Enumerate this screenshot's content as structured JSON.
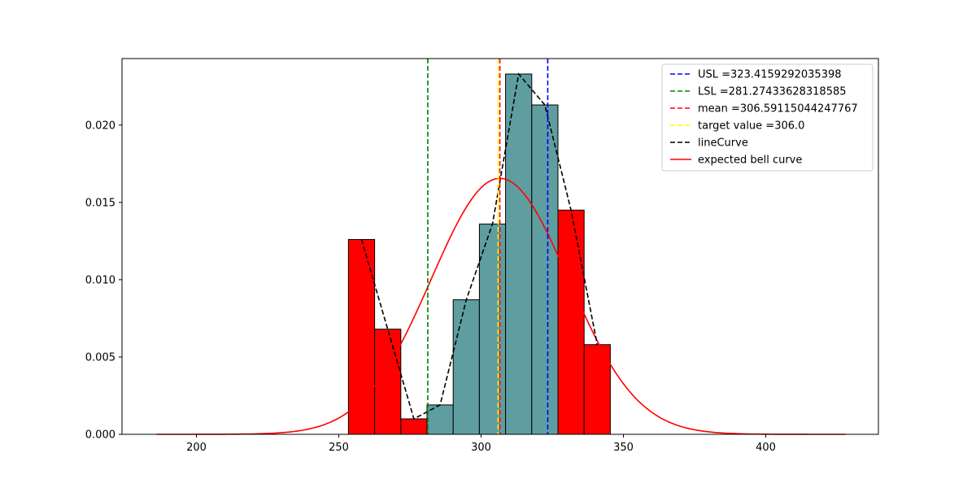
{
  "chart_data": {
    "type": "bar",
    "title": "",
    "xlabel": "",
    "ylabel": "",
    "xlim": [
      175,
      1080
    ],
    "ylim": [
      0,
      0.0243
    ],
    "x_ticks": [
      200,
      250,
      300,
      350,
      400
    ],
    "y_ticks": [
      0.0,
      0.005,
      0.01,
      0.015,
      0.02
    ],
    "x_tick_labels": [
      "200",
      "250",
      "300",
      "350",
      "400"
    ],
    "y_tick_labels": [
      "0.000",
      "0.005",
      "0.010",
      "0.015",
      "0.020"
    ],
    "grid": false,
    "legend_position": "top-right",
    "histogram": {
      "bins": [
        {
          "x0": 253.4,
          "x1": 262.6,
          "density": 0.0126,
          "color": "#ff0000"
        },
        {
          "x0": 262.6,
          "x1": 271.8,
          "density": 0.0068,
          "color": "#ff0000"
        },
        {
          "x0": 271.8,
          "x1": 281.0,
          "density": 0.001,
          "color": "#ff0000"
        },
        {
          "x0": 281.0,
          "x1": 290.2,
          "density": 0.0019,
          "color": "#5f9ea0"
        },
        {
          "x0": 290.2,
          "x1": 299.4,
          "density": 0.0087,
          "color": "#5f9ea0"
        },
        {
          "x0": 299.4,
          "x1": 308.6,
          "density": 0.0136,
          "color": "#5f9ea0"
        },
        {
          "x0": 308.6,
          "x1": 317.8,
          "density": 0.0233,
          "color": "#5f9ea0"
        },
        {
          "x0": 317.8,
          "x1": 327.0,
          "density": 0.0213,
          "color": "#5f9ea0"
        },
        {
          "x0": 327.0,
          "x1": 336.2,
          "density": 0.0145,
          "color": "#ff0000"
        },
        {
          "x0": 336.2,
          "x1": 345.4,
          "density": 0.0058,
          "color": "#ff0000"
        }
      ]
    },
    "vlines": [
      {
        "name": "USL =323.4159292035398",
        "x": 323.4159292035398,
        "color": "#0000ff"
      },
      {
        "name": "LSL =281.27433628318585",
        "x": 281.27433628318585,
        "color": "#008000"
      },
      {
        "name": "mean =306.59115044247767",
        "x": 306.59115044247767,
        "color": "#ff0000"
      },
      {
        "name": "target value =306.0",
        "x": 306.0,
        "color": "#ffff00"
      }
    ],
    "line_curve": {
      "name": "lineCurve",
      "color": "#000000",
      "x": [
        258.0,
        267.2,
        276.4,
        285.6,
        294.8,
        304.0,
        313.2,
        322.4,
        331.6,
        340.8
      ],
      "y": [
        0.0126,
        0.0068,
        0.001,
        0.0019,
        0.0087,
        0.0136,
        0.0233,
        0.0213,
        0.0145,
        0.0058
      ]
    },
    "bell_curve": {
      "name": "expected bell curve",
      "color": "#ff0000",
      "mean": 306.59115044247767,
      "std": 24.1,
      "x_range": [
        186,
        428
      ]
    }
  }
}
